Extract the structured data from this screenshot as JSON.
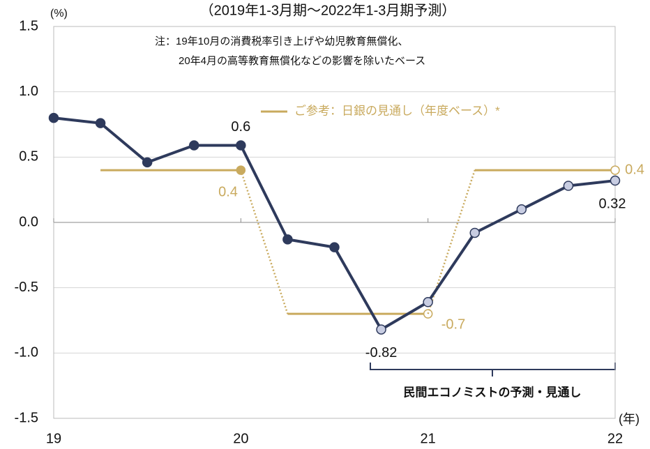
{
  "chart_data": {
    "type": "line",
    "title": "（2019年1-3月期～2022年1-3月期予測）",
    "y_unit": "(%)",
    "x_unit": "(年)",
    "note": [
      "注：19年10月の消費税率引き上げや幼児教育無償化、",
      "20年4月の高等教育無償化などの影響を除いたベース"
    ],
    "annotation": "民間エコノミストの予測・見通し",
    "xlim": [
      19,
      22
    ],
    "xticks": [
      19,
      20,
      21,
      22
    ],
    "ylim": [
      -1.5,
      1.5
    ],
    "yticks": [
      -1.5,
      {
        "value": -1.0,
        "label": "-1.0"
      },
      -0.5,
      {
        "value": 0.0,
        "label": "0.0"
      },
      0.5,
      {
        "value": 1.0,
        "label": "1.0"
      },
      1.5
    ],
    "grid": true,
    "series": [
      {
        "color": "#2e3a5c",
        "x": [
          19,
          19.25,
          19.5,
          19.75,
          20,
          20.25,
          20.5,
          20.75,
          21,
          21.25,
          21.5,
          21.75,
          22
        ],
        "values": [
          0.8,
          0.76,
          0.46,
          0.59,
          0.59,
          -0.13,
          -0.19,
          -0.82,
          -0.61,
          -0.08,
          0.1,
          0.28,
          0.32
        ],
        "value_labels": [
          null,
          null,
          null,
          null,
          "0.6",
          null,
          null,
          "-0.82",
          null,
          null,
          null,
          null,
          "0.32"
        ],
        "marker_colors": [
          "#2e3a5c",
          "#2e3a5c",
          "#2e3a5c",
          "#2e3a5c",
          "#2e3a5c",
          "#2e3a5c",
          "#2e3a5c",
          "#c8cde2",
          "#c8cde2",
          "#c8cde2",
          "#c8cde2",
          "#c8cde2",
          "#c8cde2"
        ]
      },
      {
        "name": "ご参考：日銀の見通し（年度ベース）*",
        "color": "#c9aa5e",
        "segments": [
          {
            "x": [
              19.25,
              20
            ],
            "value": 0.4,
            "end_marker": "filled"
          },
          {
            "x": [
              20.25,
              21
            ],
            "value": -0.7,
            "end_marker": "open"
          },
          {
            "x": [
              21.25,
              22
            ],
            "value": 0.4,
            "end_marker": "open"
          }
        ]
      }
    ]
  }
}
